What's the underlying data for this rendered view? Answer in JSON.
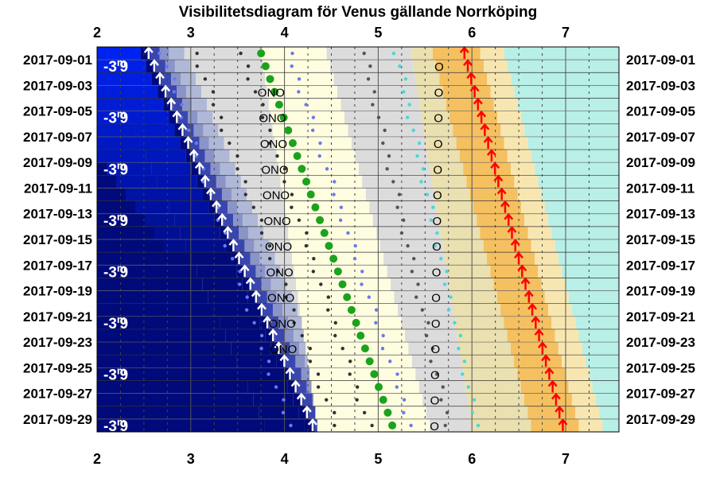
{
  "chart_data": {
    "type": "scatter",
    "title": "Visibilitetsdiagram för Venus gällande Norrköping",
    "x_ticks": [
      "2",
      "3",
      "4",
      "5",
      "6",
      "7"
    ],
    "xlim": [
      2,
      7.5
    ],
    "dates": [
      "2017-09-01",
      "2017-09-03",
      "2017-09-05",
      "2017-09-07",
      "2017-09-09",
      "2017-09-11",
      "2017-09-13",
      "2017-09-15",
      "2017-09-17",
      "2017-09-19",
      "2017-09-21",
      "2017-09-23",
      "2017-09-25",
      "2017-09-27",
      "2017-09-29"
    ],
    "magnitude_label": "-3,9",
    "magnitude_label_base": "-3",
    "magnitude_label_sup": "m",
    "magnitude_label_end": "9",
    "magnitude_rows": [
      0,
      2,
      4,
      6,
      8,
      10,
      12,
      14
    ],
    "first_row_value": 1,
    "last_row_value": 30,
    "colors": {
      "night": "#000a7a",
      "deep_blue": "#0022ee",
      "twilight": "#b0b8d8",
      "gray": "#dcdcdc",
      "pale_yellow": "#fffde0",
      "orange": "#f5c060",
      "cyan": "#b8efe6",
      "rise_arrow": "#ffffff",
      "set_arrow": "#ff0000",
      "venus": "#1ca21c",
      "sun_dot": "#6a7aee",
      "moon_dot": "#48d8d8"
    },
    "series": [
      {
        "marker": "up-arrow-white",
        "x_start": 2.55,
        "x_end": 4.3
      },
      {
        "marker": "green-dot",
        "x_start": 3.75,
        "x_end": 5.15
      },
      {
        "marker": "up-arrow-red",
        "x_start": 5.92,
        "x_end": 6.97
      }
    ],
    "direction_labels": {
      "left": "ONO",
      "left_rows": [
        1,
        2,
        3,
        4,
        5,
        6,
        7,
        8,
        9,
        10,
        11
      ],
      "left_x_start": 3.7,
      "left_x_end": 3.83,
      "right": "O",
      "right_x_start": 5.6,
      "right_x_end": 5.55
    }
  }
}
